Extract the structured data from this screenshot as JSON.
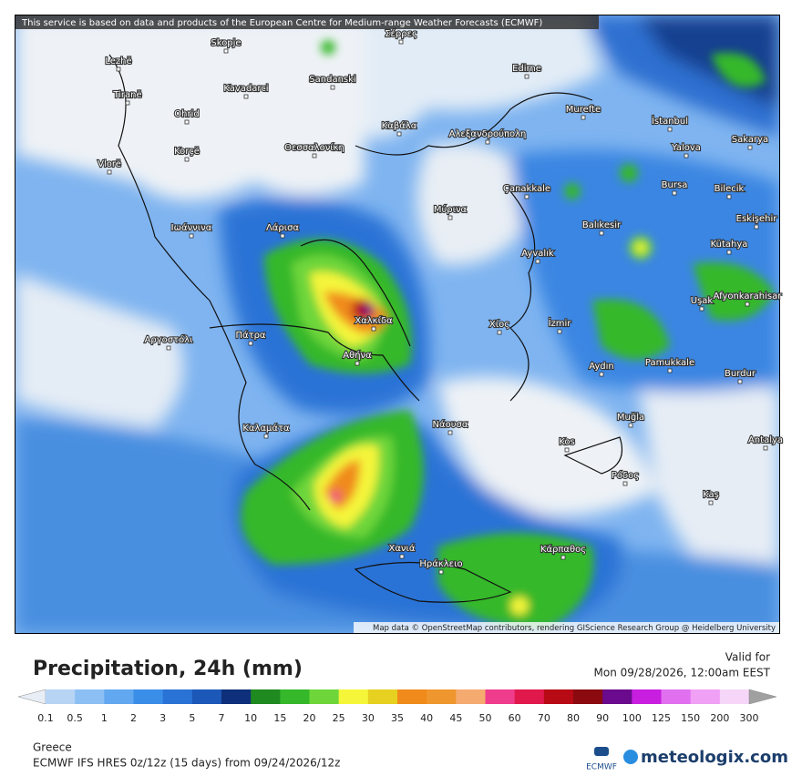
{
  "map": {
    "attribution_top": "This service is based on data and products of the European Centre for Medium-range Weather Forecasts (ECMWF)",
    "attribution_bottom": "Map data © OpenStreetMap contributors, rendering GIScience Research Group @ Heidelberg University",
    "cities": [
      "Lezhë",
      "Tiranë",
      "Skopje",
      "Kavadarci",
      "Ohrid",
      "Korçë",
      "Vlorë",
      "Sandanski",
      "Θεσσαλονίκη",
      "Καβάλα",
      "Αλεξανδρούπολη",
      "Edirne",
      "Murefte",
      "İstanbul",
      "Yalova",
      "Sakarya",
      "Bursa",
      "Bilecik",
      "Eskişehir",
      "Çanakkale",
      "Balıkesir",
      "Ayvalık",
      "Kütahya",
      "Uşak",
      "Afyonkarahisar",
      "İzmir",
      "Χίος",
      "Aydın",
      "Pamukkale",
      "Burdur",
      "Muğla",
      "Antalya",
      "Kos",
      "Ρόδος",
      "Kaş",
      "Νάουσα",
      "Λάρισα",
      "Ιωάννινα",
      "Χαλκίδα",
      "Αθήνα",
      "Πάτρα",
      "Αργοστόλι",
      "Καλαμάτα",
      "Χανιά",
      "Ηράκλειο",
      "Κάρπαθος",
      "Μύρινα",
      "Σέρρες"
    ]
  },
  "legend": {
    "title": "Precipitation, 24h (mm)",
    "valid_label": "Valid for",
    "valid_time": "Mon 09/28/2026, 12:00am EEST",
    "ticks": [
      "0.1",
      "0.5",
      "1",
      "2",
      "3",
      "5",
      "7",
      "10",
      "15",
      "20",
      "25",
      "30",
      "35",
      "40",
      "45",
      "50",
      "60",
      "70",
      "80",
      "90",
      "100",
      "125",
      "150",
      "200",
      "300"
    ],
    "colors": [
      "#e8eef5",
      "#b7d4f5",
      "#8cc0f5",
      "#62a8f0",
      "#3b8ee8",
      "#2a73d6",
      "#1c58b8",
      "#0e2f7a",
      "#1f8a1f",
      "#35b82a",
      "#6ed63a",
      "#f5f53a",
      "#e6d020",
      "#f08a1a",
      "#f0962e",
      "#f5aa70",
      "#f03c8c",
      "#e0184c",
      "#b80a14",
      "#8a0a10",
      "#6a0a8c",
      "#c81ee0",
      "#e070f0",
      "#f0a0f5",
      "#f5d6f8",
      "#d0d0d0",
      "#a0a0a0"
    ]
  },
  "footer": {
    "region": "Greece",
    "model": "ECMWF IFS HRES 0z/12z (15 days) from 09/24/2026/12z",
    "logo_small": "ECMWF",
    "logo": "meteologix.com"
  }
}
